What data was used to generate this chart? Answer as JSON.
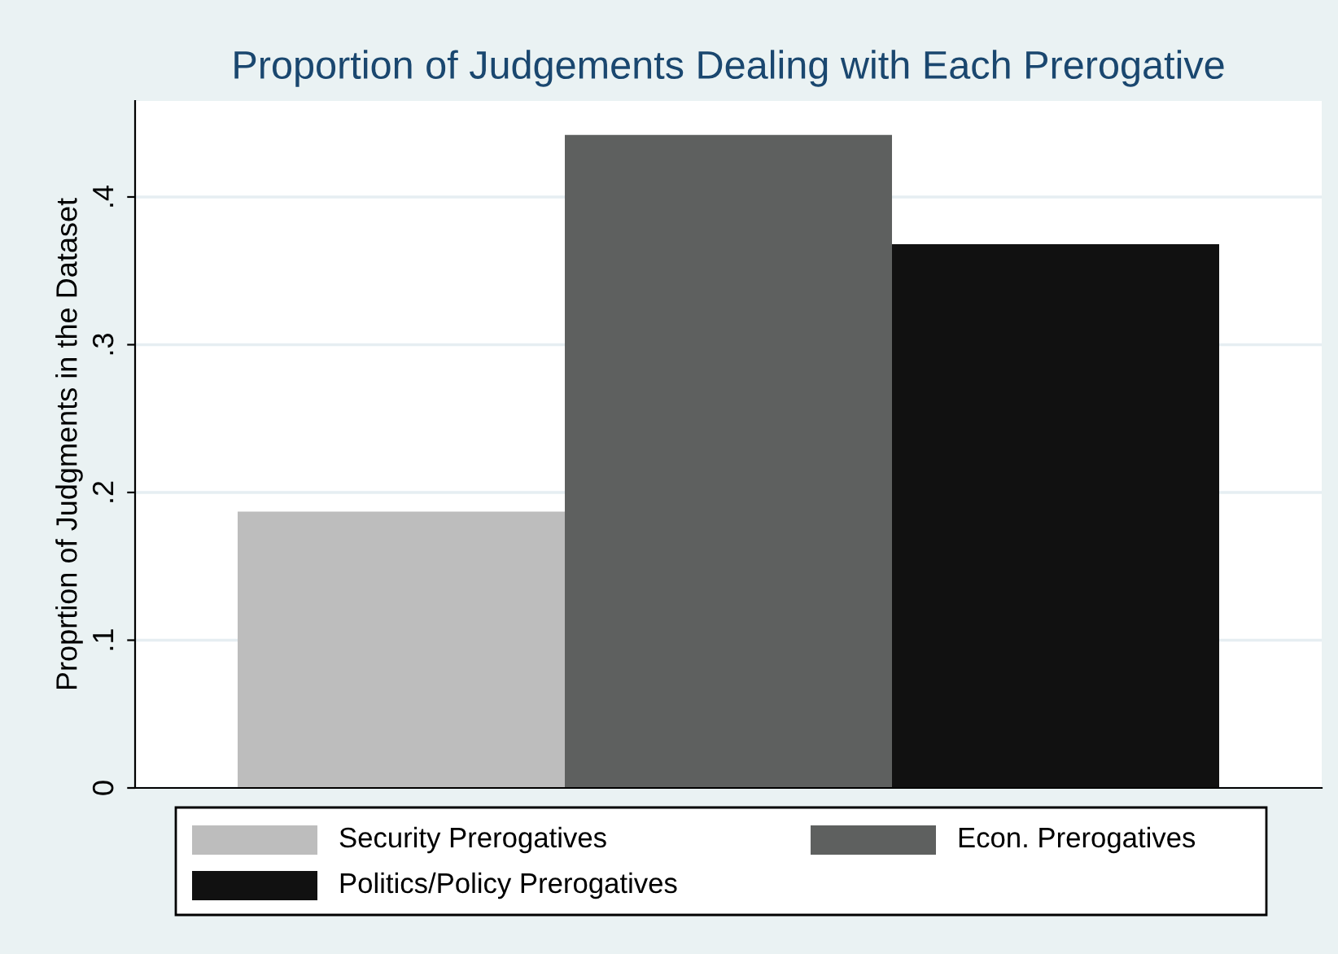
{
  "chart_data": {
    "type": "bar",
    "title": "Proportion of Judgements Dealing with Each Prerogative",
    "ylabel": "Proprtion of Judgments in the Dataset",
    "categories": [
      null
    ],
    "series": [
      {
        "name": "Security Prerogatives",
        "color": "#bdbdbd",
        "values": [
          0.187
        ]
      },
      {
        "name": "Econ. Prerogatives",
        "color": "#5e605f",
        "values": [
          0.442
        ]
      },
      {
        "name": "Politics/Policy Prerogatives",
        "color": "#111111",
        "values": [
          0.368
        ]
      }
    ],
    "ylim": [
      0,
      0.465
    ],
    "yticks": [
      {
        "value": 0,
        "label": "0"
      },
      {
        "value": 0.1,
        "label": ".1"
      },
      {
        "value": 0.2,
        "label": ".2"
      },
      {
        "value": 0.3,
        "label": ".3"
      },
      {
        "value": 0.4,
        "label": ".4"
      }
    ],
    "grid": "y",
    "legend": "bottom"
  }
}
